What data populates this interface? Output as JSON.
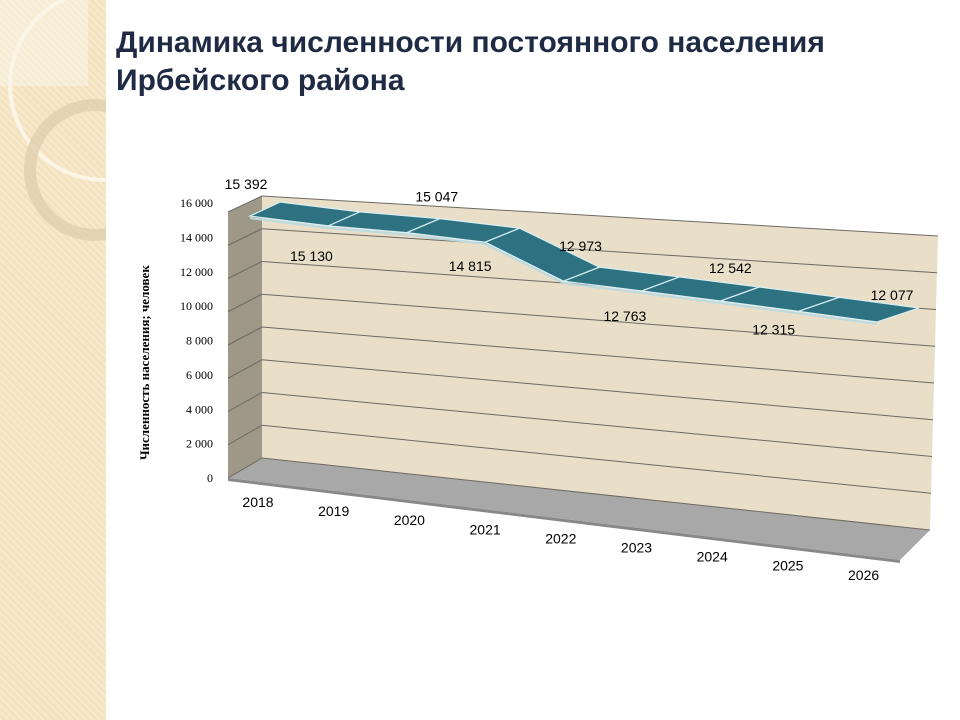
{
  "slide": {
    "title_line1": "Динамика численности постоянного населения",
    "title_line2": "Ирбейского района"
  },
  "chart_data": {
    "type": "line",
    "style": "3d-ribbon",
    "title": "Динамика численности постоянного населения Ирбейского района",
    "xlabel": "",
    "ylabel": "Численность населения; человек",
    "categories": [
      "2018",
      "2019",
      "2020",
      "2021",
      "2022",
      "2023",
      "2024",
      "2025",
      "2026"
    ],
    "values": [
      15392,
      15130,
      15047,
      14815,
      12973,
      12763,
      12542,
      12315,
      12077
    ],
    "value_labels": [
      "15 392",
      "15 130",
      "15 047",
      "14 815",
      "12 973",
      "12 763",
      "12 542",
      "12 315",
      "12 077"
    ],
    "yticks": [
      "0",
      "2 000",
      "4 000",
      "6 000",
      "8 000",
      "10 000",
      "12 000",
      "14 000",
      "16 000"
    ],
    "ylim": [
      0,
      16000
    ],
    "grid": true,
    "colors": {
      "ribbon": "#2e7282",
      "wall": "#e9dfc9",
      "side_wall": "#9e9889",
      "floor": "#a8a8a8"
    }
  }
}
